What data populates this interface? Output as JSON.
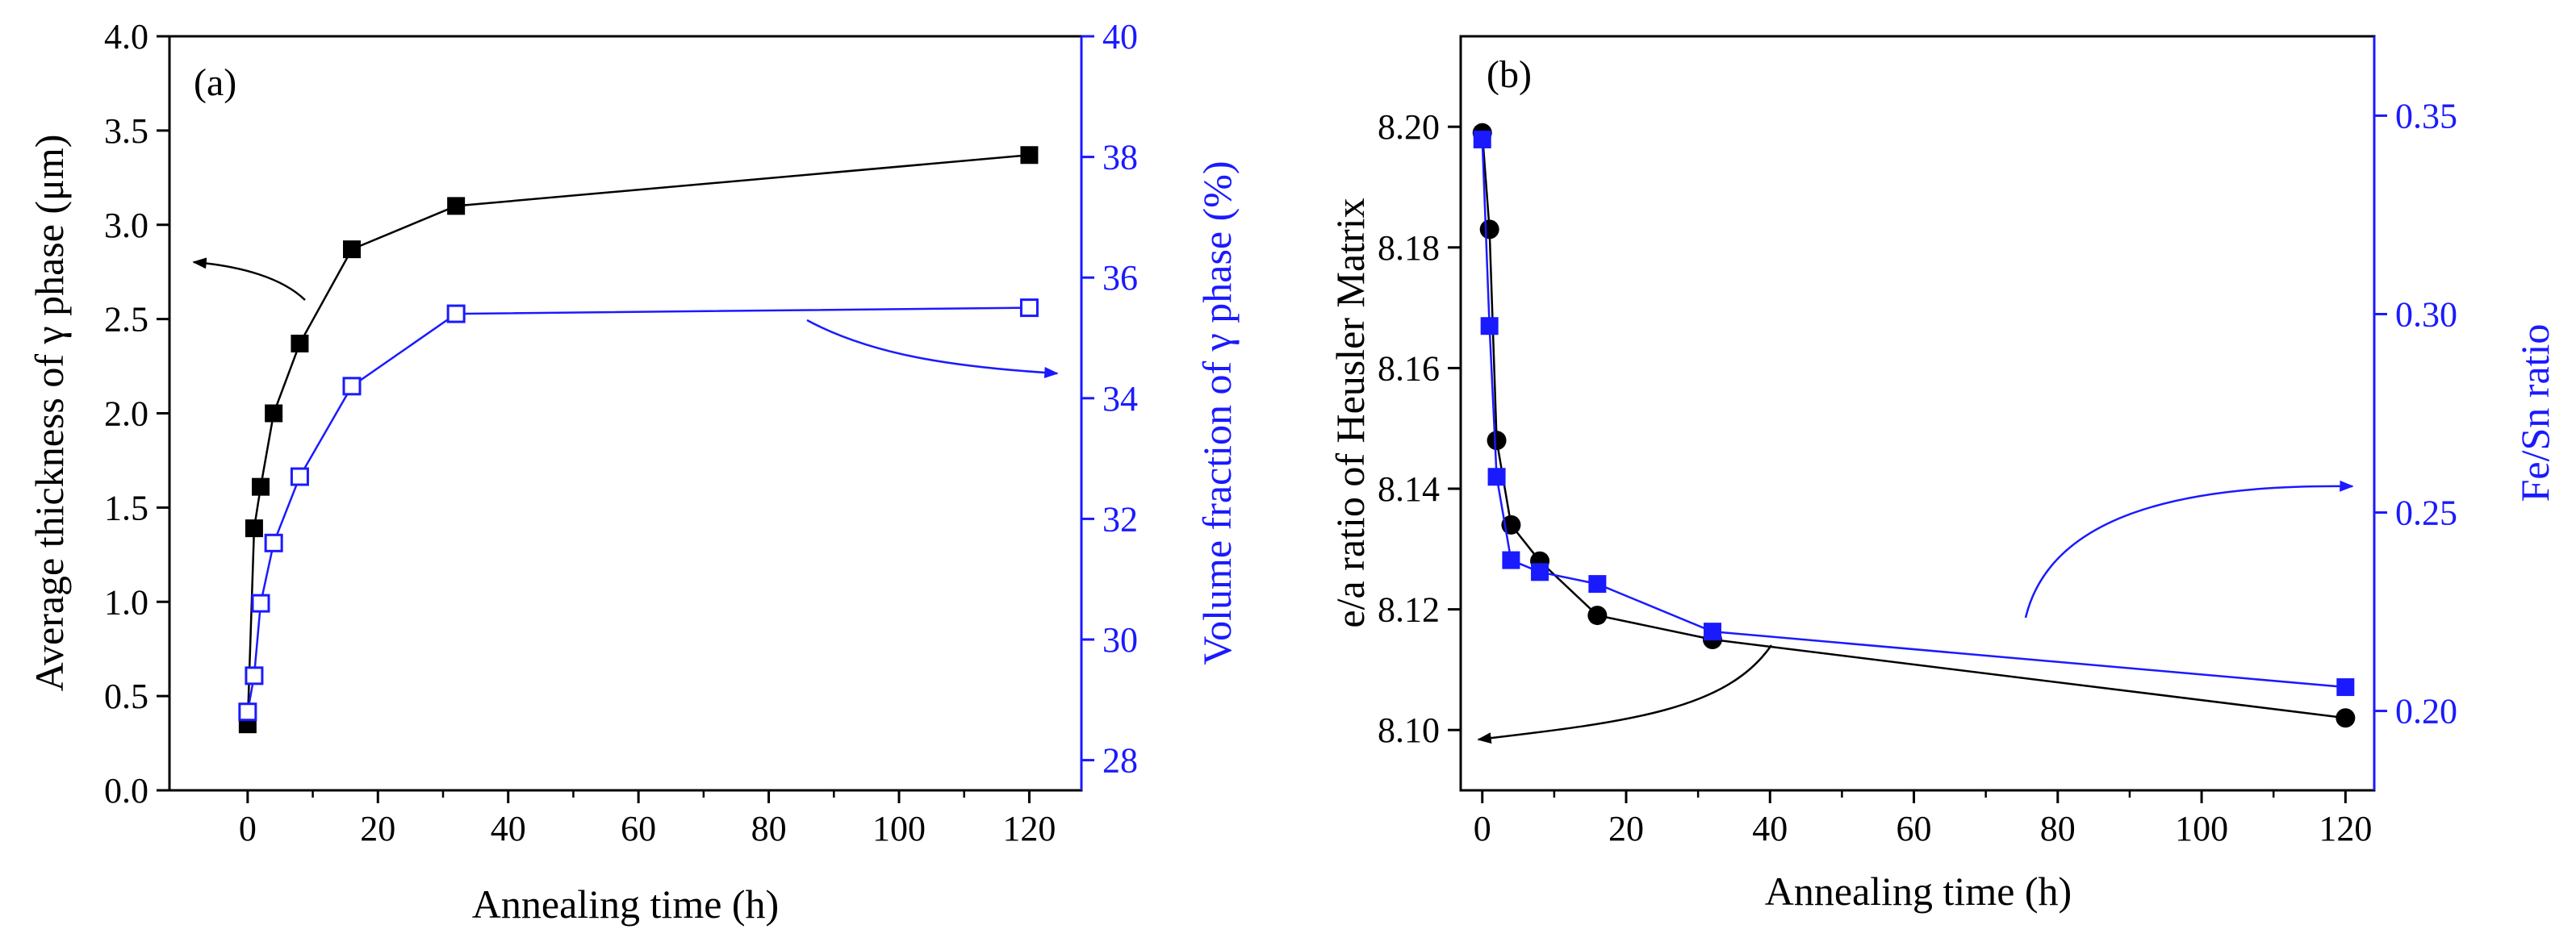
{
  "chart_data": [
    {
      "type": "scatter",
      "panel_label": "(a)",
      "xlabel": "Annealing time (h)",
      "xlim": [
        -12,
        128
      ],
      "xticks": [
        0,
        20,
        40,
        60,
        80,
        100,
        120
      ],
      "y_left": {
        "label": "Average thickness of γ phase (μm)",
        "lim": [
          0.0,
          4.0
        ],
        "ticks": [
          "0.0",
          "0.5",
          "1.0",
          "1.5",
          "2.0",
          "2.5",
          "3.0",
          "3.5",
          "4.0"
        ],
        "color": "#000000"
      },
      "y_right": {
        "label": "Volume fraction of γ phase (%)",
        "lim": [
          27.5,
          40
        ],
        "ticks": [
          "28",
          "30",
          "32",
          "34",
          "36",
          "38",
          "40"
        ],
        "color": "#1a1aff"
      },
      "series": [
        {
          "name": "Average thickness",
          "axis": "left",
          "marker": "filled-square",
          "color": "#000000",
          "x": [
            0,
            1,
            2,
            4,
            8,
            16,
            32,
            120
          ],
          "y": [
            0.35,
            1.39,
            1.61,
            2.0,
            2.37,
            2.87,
            3.1,
            3.37
          ]
        },
        {
          "name": "Volume fraction",
          "axis": "right",
          "marker": "open-square",
          "color": "#1a1aff",
          "x": [
            0,
            1,
            2,
            4,
            8,
            16,
            32,
            120
          ],
          "y": [
            28.8,
            29.4,
            30.6,
            31.6,
            32.7,
            34.2,
            35.4,
            35.5
          ]
        }
      ],
      "annotations": [
        "arrow from thickness curve pointing to left axis",
        "arrow from volume fraction curve pointing to right axis"
      ]
    },
    {
      "type": "scatter",
      "panel_label": "(b)",
      "xlabel": "Annealing time (h)",
      "xlim": [
        -3,
        124
      ],
      "xticks": [
        0,
        20,
        40,
        60,
        80,
        100,
        120
      ],
      "y_left": {
        "label": "e/a ratio of Heusler Matrix",
        "lim": [
          8.09,
          8.215
        ],
        "ticks": [
          "8.10",
          "8.12",
          "8.14",
          "8.16",
          "8.18",
          "8.20"
        ],
        "color": "#000000"
      },
      "y_right": {
        "label": "Fe/Sn ratio",
        "lim": [
          0.18,
          0.37
        ],
        "ticks": [
          "0.20",
          "0.25",
          "0.30",
          "0.35"
        ],
        "color": "#1a1aff"
      },
      "series": [
        {
          "name": "e/a ratio",
          "axis": "left",
          "marker": "filled-circle",
          "color": "#000000",
          "x": [
            0,
            1,
            2,
            4,
            8,
            16,
            32,
            120
          ],
          "y": [
            8.199,
            8.183,
            8.148,
            8.134,
            8.128,
            8.119,
            8.115,
            8.102
          ]
        },
        {
          "name": "Fe/Sn ratio",
          "axis": "right",
          "marker": "filled-square",
          "color": "#1a1aff",
          "x": [
            0,
            1,
            2,
            4,
            8,
            16,
            32,
            120
          ],
          "y": [
            0.344,
            0.297,
            0.259,
            0.238,
            0.235,
            0.232,
            0.22,
            0.206
          ]
        }
      ],
      "annotations": [
        "arrow from e/a curve pointing to left axis",
        "arrow from Fe/Sn curve pointing to right axis"
      ]
    }
  ]
}
